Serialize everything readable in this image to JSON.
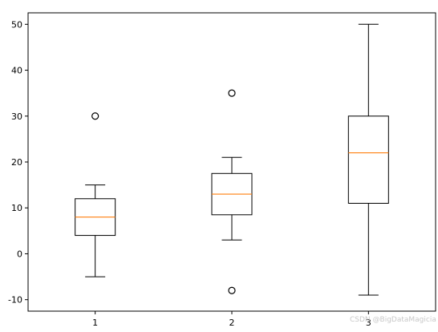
{
  "chart_data": {
    "type": "box",
    "categories": [
      "1",
      "2",
      "3"
    ],
    "boxes": [
      {
        "category": "1",
        "whisker_low": -5,
        "q1": 4,
        "median": 8,
        "q3": 12,
        "whisker_high": 15,
        "outliers": [
          30
        ]
      },
      {
        "category": "2",
        "whisker_low": 3,
        "q1": 8.5,
        "median": 13,
        "q3": 17.5,
        "whisker_high": 21,
        "outliers": [
          35,
          -8
        ]
      },
      {
        "category": "3",
        "whisker_low": -9,
        "q1": 11,
        "median": 22,
        "q3": 30,
        "whisker_high": 50,
        "outliers": []
      }
    ],
    "ylim": [
      -12.5,
      52.5
    ],
    "yticks": [
      "-10",
      "0",
      "10",
      "20",
      "30",
      "40",
      "50"
    ],
    "grid": false,
    "colors": {
      "box": "#000000",
      "median": "#ff7f0e",
      "outlier": "#000000"
    }
  },
  "watermark": "CSDN @BigDataMagiciar"
}
